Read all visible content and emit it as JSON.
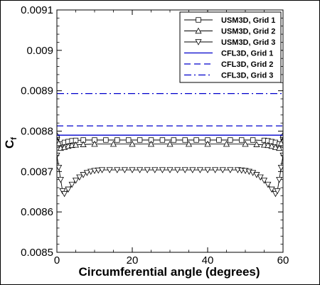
{
  "chart_data": {
    "type": "line",
    "title": "",
    "xlabel": "Circumferential angle (degrees)",
    "ylabel_main": "C",
    "ylabel_sub": "f",
    "xlim": [
      0,
      60
    ],
    "ylim": [
      0.0085,
      0.0091
    ],
    "x_ticks": [
      0,
      20,
      40,
      60
    ],
    "x_tick_labels": [
      "0",
      "20",
      "40",
      "60"
    ],
    "y_ticks": [
      0.0085,
      0.0086,
      0.0087,
      0.0088,
      0.0089,
      0.009,
      0.0091
    ],
    "y_tick_labels": [
      "0.0085",
      "0.0086",
      "0.0087",
      "0.0088",
      "0.0089",
      "0.009",
      "0.0091"
    ],
    "grid": false,
    "legend_position": "top-right",
    "series": [
      {
        "name": "USM3D, Grid 1",
        "color": "#000000",
        "style": "solid",
        "marker": "square",
        "x": [
          0,
          1,
          2,
          3,
          4,
          5,
          7,
          10,
          13,
          16,
          19,
          22,
          25,
          28,
          31,
          34,
          37,
          40,
          43,
          46,
          49,
          52,
          55,
          56,
          57,
          58,
          59,
          60
        ],
        "y": [
          0.008785,
          0.008768,
          0.008772,
          0.008774,
          0.008776,
          0.008777,
          0.008778,
          0.008778,
          0.008778,
          0.008778,
          0.008778,
          0.008778,
          0.008778,
          0.008778,
          0.008778,
          0.008778,
          0.008778,
          0.008778,
          0.008778,
          0.008778,
          0.008778,
          0.008778,
          0.008777,
          0.008776,
          0.008774,
          0.008772,
          0.008768,
          0.008785
        ]
      },
      {
        "name": "USM3D, Grid 2",
        "color": "#000000",
        "style": "solid",
        "marker": "triangle-up",
        "x": [
          0,
          0.5,
          1,
          2,
          3,
          4,
          5,
          7,
          10,
          15,
          20,
          25,
          30,
          35,
          40,
          45,
          50,
          53,
          55,
          56,
          57,
          58,
          59,
          59.5,
          60
        ],
        "y": [
          0.00879,
          0.00877,
          0.008758,
          0.00876,
          0.008763,
          0.008765,
          0.008766,
          0.008767,
          0.008768,
          0.008768,
          0.008768,
          0.008768,
          0.008768,
          0.008768,
          0.008768,
          0.008768,
          0.008768,
          0.008767,
          0.008766,
          0.008765,
          0.008763,
          0.00876,
          0.008758,
          0.00877,
          0.00879
        ]
      },
      {
        "name": "USM3D, Grid 3",
        "color": "#000000",
        "style": "solid",
        "marker": "triangle-down",
        "x": [
          0,
          0.5,
          1,
          1.5,
          2,
          3,
          4,
          5,
          6,
          7,
          8,
          9,
          10,
          11,
          12,
          14,
          16,
          18,
          20,
          22,
          24,
          26,
          28,
          30,
          32,
          34,
          36,
          38,
          40,
          42,
          44,
          46,
          48,
          49,
          50,
          51,
          52,
          53,
          54,
          55,
          56,
          57,
          58,
          58.5,
          59,
          59.5,
          60
        ],
        "y": [
          0.00874,
          0.00871,
          0.00868,
          0.008652,
          0.008645,
          0.008656,
          0.008668,
          0.008678,
          0.008686,
          0.008692,
          0.008697,
          0.0087,
          0.008702,
          0.008703,
          0.008704,
          0.008704,
          0.008704,
          0.008704,
          0.008704,
          0.008704,
          0.008704,
          0.008704,
          0.008704,
          0.008704,
          0.008704,
          0.008704,
          0.008704,
          0.008704,
          0.008704,
          0.008704,
          0.008704,
          0.008704,
          0.008704,
          0.008703,
          0.008702,
          0.0087,
          0.008697,
          0.008692,
          0.008686,
          0.008678,
          0.008668,
          0.008656,
          0.008645,
          0.008652,
          0.00868,
          0.00871,
          0.00874
        ]
      },
      {
        "name": "CFL3D, Grid 1",
        "color": "#0000cc",
        "style": "solid",
        "marker": "none",
        "x": [
          0,
          60
        ],
        "y": [
          0.00879,
          0.00879
        ]
      },
      {
        "name": "CFL3D, Grid 2",
        "color": "#0000cc",
        "style": "dashed",
        "marker": "none",
        "x": [
          0,
          60
        ],
        "y": [
          0.008813,
          0.008813
        ]
      },
      {
        "name": "CFL3D, Grid 3",
        "color": "#0000cc",
        "style": "dashdot",
        "marker": "none",
        "x": [
          0,
          60
        ],
        "y": [
          0.008893,
          0.008893
        ]
      }
    ]
  }
}
